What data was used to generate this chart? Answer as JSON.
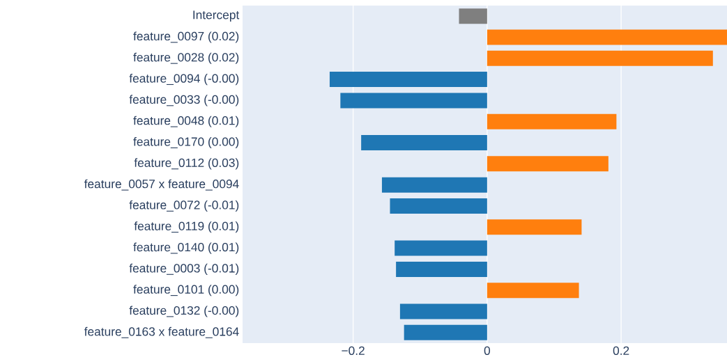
{
  "chart_data": {
    "type": "bar",
    "orientation": "horizontal",
    "categories": [
      "Intercept",
      "feature_0097 (0.02)",
      "feature_0028 (0.02)",
      "feature_0094 (-0.00)",
      "feature_0033 (-0.00)",
      "feature_0048 (0.01)",
      "feature_0170 (0.00)",
      "feature_0112 (0.03)",
      "feature_0057 x feature_0094",
      "feature_0072 (-0.01)",
      "feature_0119 (0.01)",
      "feature_0140 (0.01)",
      "feature_0003 (-0.01)",
      "feature_0101 (0.00)",
      "feature_0132 (-0.00)",
      "feature_0163 x feature_0164"
    ],
    "values": [
      -0.042,
      0.358,
      0.337,
      -0.235,
      -0.219,
      0.193,
      -0.188,
      0.181,
      -0.157,
      -0.145,
      0.141,
      -0.138,
      -0.136,
      0.137,
      -0.13,
      -0.124
    ],
    "colors": [
      "#7f7f7f",
      "#ff7f0e",
      "#ff7f0e",
      "#1f77b4",
      "#1f77b4",
      "#ff7f0e",
      "#1f77b4",
      "#ff7f0e",
      "#1f77b4",
      "#1f77b4",
      "#ff7f0e",
      "#1f77b4",
      "#1f77b4",
      "#ff7f0e",
      "#1f77b4",
      "#1f77b4"
    ],
    "xlim": [
      -0.365,
      0.358
    ],
    "xticks": [
      {
        "value": -0.2,
        "label": "−0.2"
      },
      {
        "value": 0,
        "label": "0"
      },
      {
        "value": 0.2,
        "label": "0.2"
      }
    ],
    "grid": "x"
  }
}
